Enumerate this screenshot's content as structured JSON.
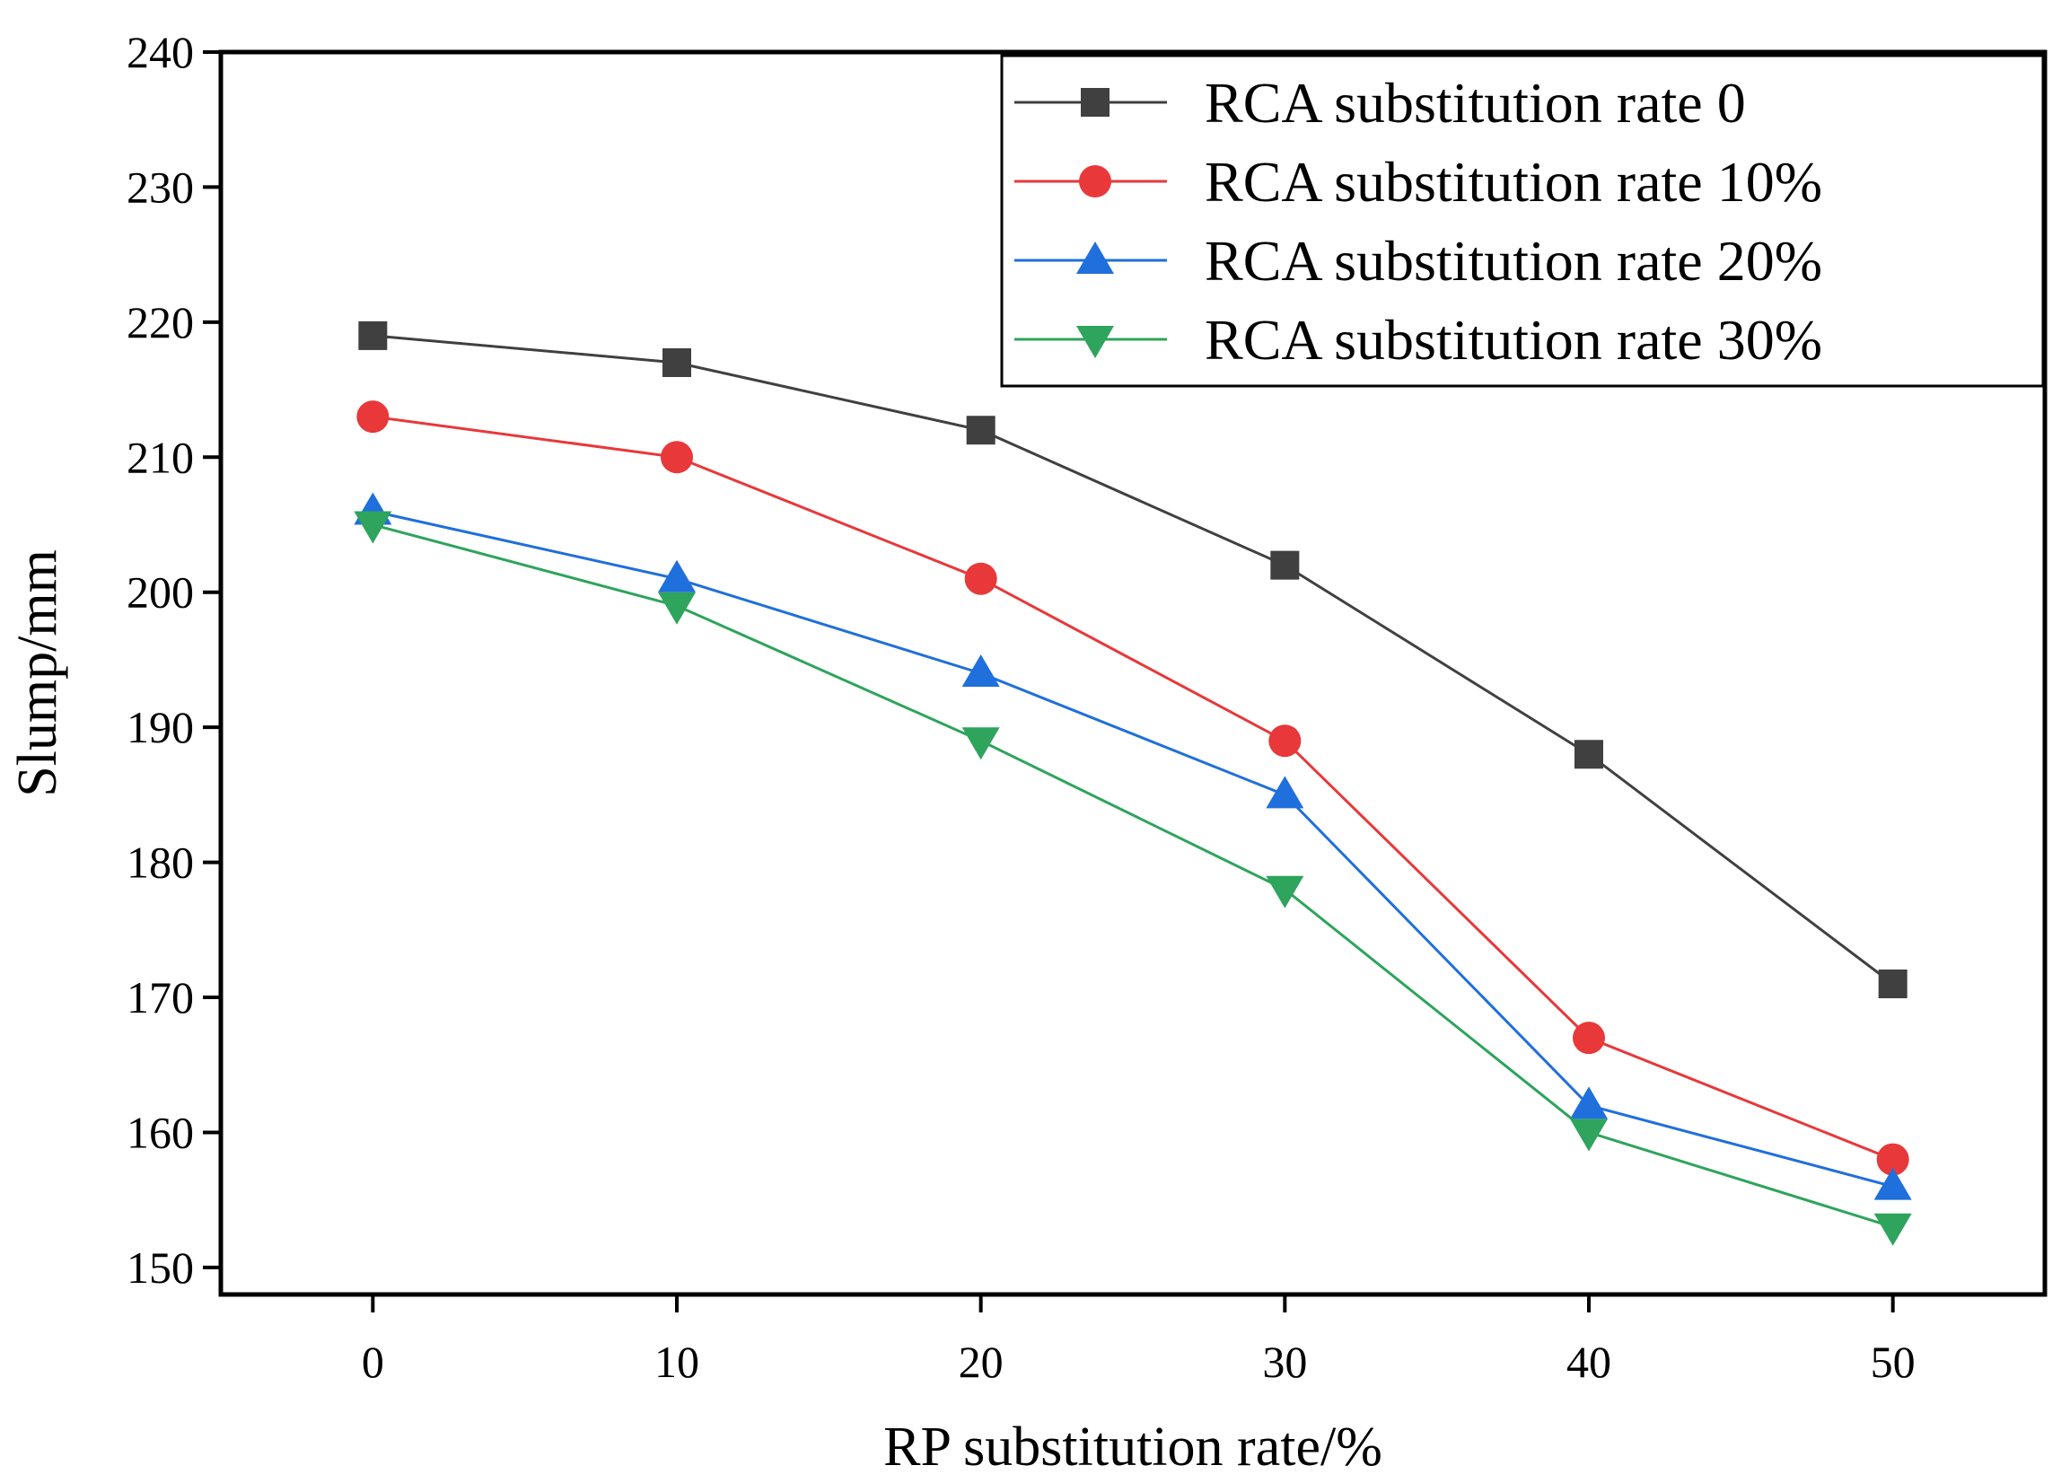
{
  "chart_data": {
    "type": "line",
    "title": "",
    "xlabel": "RP substitution rate/%",
    "ylabel": "Slump/mm",
    "x": [
      0,
      10,
      20,
      30,
      40,
      50
    ],
    "xticks": [
      "0",
      "10",
      "20",
      "30",
      "40",
      "50"
    ],
    "xlim": [
      -5,
      55
    ],
    "ylim": [
      148,
      240
    ],
    "yticks": [
      "150",
      "160",
      "170",
      "180",
      "190",
      "200",
      "210",
      "220",
      "230",
      "240"
    ],
    "legend_position": "top-right",
    "grid": false,
    "series": [
      {
        "name": "RCA substitution rate 0",
        "values": [
          219,
          217,
          212,
          202,
          188,
          171
        ],
        "color": "#404040",
        "marker": "square"
      },
      {
        "name": "RCA substitution rate 10%",
        "values": [
          213,
          210,
          201,
          189,
          167,
          158
        ],
        "color": "#e8383a",
        "marker": "circle"
      },
      {
        "name": "RCA substitution rate 20%",
        "values": [
          206,
          201,
          194,
          185,
          162,
          156
        ],
        "color": "#1f6fdc",
        "marker": "triangle-up"
      },
      {
        "name": "RCA substitution rate 30%",
        "values": [
          205,
          199,
          189,
          178,
          160,
          153
        ],
        "color": "#2ea45c",
        "marker": "triangle-down"
      }
    ]
  }
}
